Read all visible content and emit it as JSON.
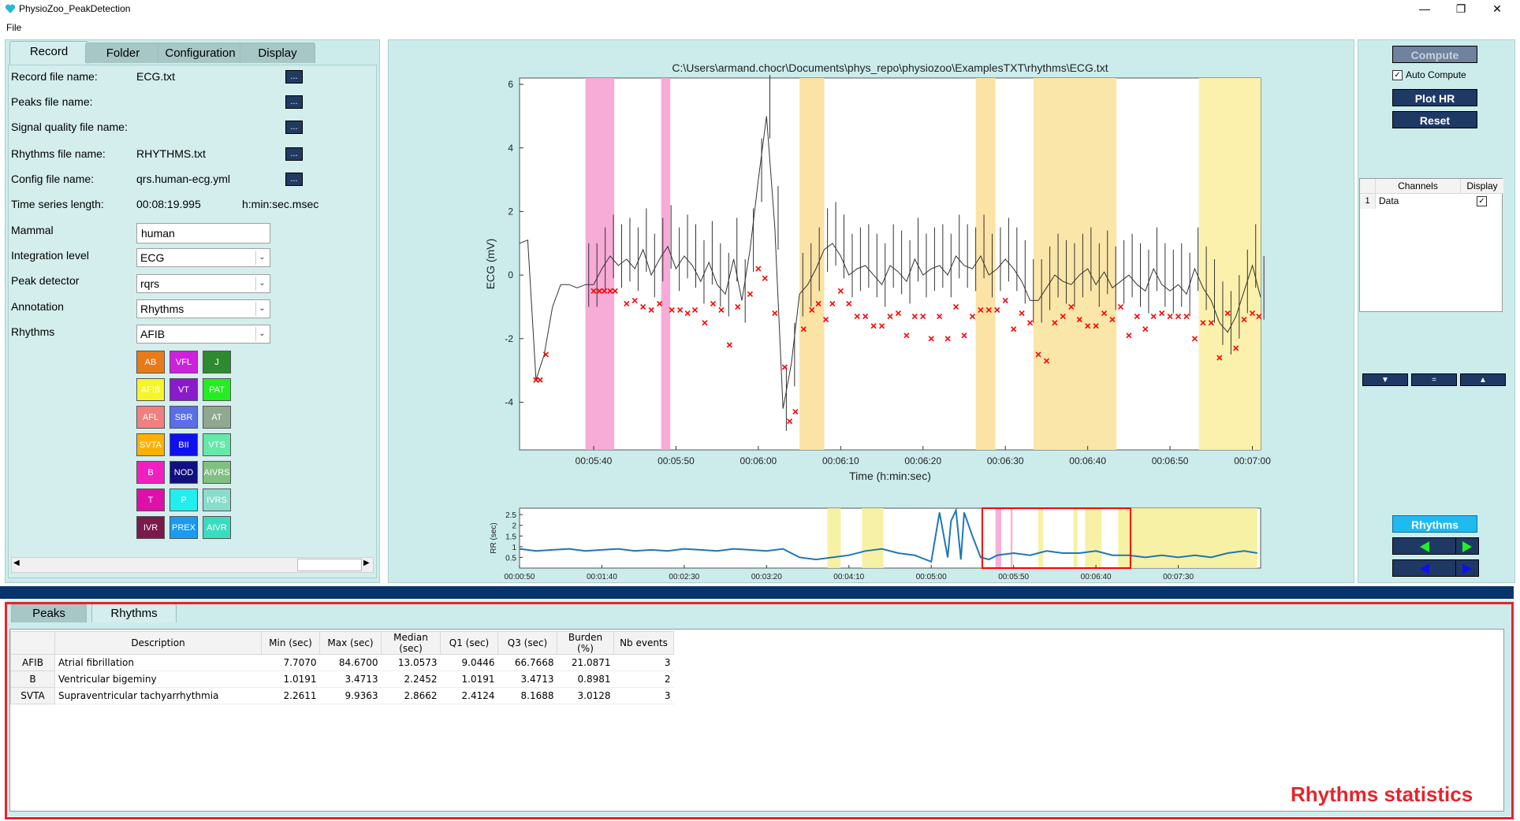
{
  "app": {
    "title": "PhysioZoo_PeakDetection",
    "menu": [
      "File"
    ]
  },
  "window_buttons": {
    "minimize": "—",
    "restore": "❐",
    "close": "✕"
  },
  "left_tabs": [
    "Record",
    "Folder",
    "Configuration",
    "Display"
  ],
  "record": {
    "fields": [
      {
        "label": "Record file name:",
        "value": "ECG.txt",
        "button": "..."
      },
      {
        "label": "Peaks file name:",
        "value": "",
        "button": "..."
      },
      {
        "label": "Signal quality file name:",
        "value": "",
        "button": "..."
      },
      {
        "label": "Rhythms file name:",
        "value": "RHYTHMS.txt",
        "button": "..."
      },
      {
        "label": "Config file name:",
        "value": "qrs.human-ecg.yml",
        "button": "..."
      }
    ],
    "ts_label": "Time series length:",
    "ts_value": "00:08:19.995",
    "ts_unit": "h:min:sec.msec",
    "mammal_label": "Mammal",
    "mammal_value": "human",
    "integration_label": "Integration level",
    "integration_value": "ECG",
    "peak_label": "Peak detector",
    "peak_value": "rqrs",
    "annotation_label": "Annotation",
    "annotation_value": "Rhythms",
    "rhythms_label": "Rhythms",
    "rhythms_value": "AFIB"
  },
  "rhythm_buttons": [
    {
      "label": "AB",
      "color": "#e87a1a",
      "text": "#ffffff"
    },
    {
      "label": "VFL",
      "color": "#cc22dd",
      "text": "#ffffff"
    },
    {
      "label": "J",
      "color": "#2e8a2e",
      "text": "#ffffff"
    },
    {
      "label": "AFIB",
      "color": "#f5f52a",
      "text": "#ffffff"
    },
    {
      "label": "VT",
      "color": "#8a1acc",
      "text": "#ffffff"
    },
    {
      "label": "PAT",
      "color": "#22ee22",
      "text": "#ffffff"
    },
    {
      "label": "AFL",
      "color": "#f08080",
      "text": "#ffffff"
    },
    {
      "label": "SBR",
      "color": "#5b6ee6",
      "text": "#ffffff"
    },
    {
      "label": "AT",
      "color": "#8fa88f",
      "text": "#ffffff"
    },
    {
      "label": "SVTA",
      "color": "#ffb000",
      "text": "#ffffff"
    },
    {
      "label": "BII",
      "color": "#1010ee",
      "text": "#ffffff"
    },
    {
      "label": "VTS",
      "color": "#66e8aa",
      "text": "#ffffff"
    },
    {
      "label": "B",
      "color": "#f020c0",
      "text": "#ffffff"
    },
    {
      "label": "NOD",
      "color": "#101080",
      "text": "#ffffff"
    },
    {
      "label": "AIVRS",
      "color": "#80c080",
      "text": "#ffffff"
    },
    {
      "label": "T",
      "color": "#dd10aa",
      "text": "#ffffff"
    },
    {
      "label": "P",
      "color": "#22eeee",
      "text": "#ffffff"
    },
    {
      "label": "IVRS",
      "color": "#88ddcc",
      "text": "#ffffff"
    },
    {
      "label": "IVR",
      "color": "#7a1a4a",
      "text": "#ffffff"
    },
    {
      "label": "PREX",
      "color": "#1a9af0",
      "text": "#ffffff"
    },
    {
      "label": "AIVR",
      "color": "#3adcc0",
      "text": "#ffffff"
    }
  ],
  "right": {
    "compute_label": "Compute",
    "auto_compute_label": "Auto Compute",
    "auto_compute_checked": true,
    "plot_hr_label": "Plot HR",
    "reset_label": "Reset",
    "channels_header": "Channels",
    "display_header": "Display",
    "channels": [
      {
        "index": "1",
        "name": "Data",
        "display": true
      }
    ],
    "zoom_buttons": [
      "▼",
      "=",
      "▲"
    ],
    "rhythms_button": "Rhythms"
  },
  "chart_data": [
    {
      "type": "line",
      "title": "C:\\Users\\armand.chocr\\Documents\\phys_repo\\physiozoo\\ExamplesTXT\\rhythms\\ECG.txt",
      "xlabel": "Time (h:min:sec)",
      "ylabel": "ECG (mV)",
      "x_unit": "seconds",
      "xlim": [
        331,
        421
      ],
      "ylim": [
        -5.5,
        6.2
      ],
      "xticks": [
        340,
        350,
        360,
        370,
        380,
        390,
        400,
        410,
        420
      ],
      "xtick_labels": [
        "00:05:40",
        "00:05:50",
        "00:06:00",
        "00:06:10",
        "00:06:20",
        "00:06:30",
        "00:06:40",
        "00:06:50",
        "00:07:00"
      ],
      "yticks": [
        -4,
        -2,
        0,
        2,
        4,
        6
      ],
      "rhythm_regions": [
        {
          "start": 339,
          "end": 342.5,
          "color": "#f7a7d5"
        },
        {
          "start": 348.2,
          "end": 349.3,
          "color": "#f7a7d5"
        },
        {
          "start": 365,
          "end": 368,
          "color": "#fbe2a0"
        },
        {
          "start": 386.4,
          "end": 388.8,
          "color": "#fbe2a0"
        },
        {
          "start": 393.4,
          "end": 403.5,
          "color": "#fbe5a4"
        },
        {
          "start": 413.5,
          "end": 421,
          "color": "#fcf0a8"
        }
      ],
      "series": [
        {
          "name": "ECG",
          "color": "#333333",
          "x": [
            331,
            332,
            333,
            334,
            335,
            336,
            337,
            338,
            339,
            340,
            341,
            342,
            343,
            344,
            345,
            346,
            347,
            348,
            349,
            350,
            351,
            352,
            353,
            354,
            355,
            356,
            357,
            358,
            359,
            360,
            361,
            362,
            363,
            364,
            365,
            366,
            367,
            368,
            369,
            370,
            371,
            372,
            373,
            374,
            375,
            376,
            377,
            378,
            379,
            380,
            381,
            382,
            383,
            384,
            385,
            386,
            387,
            388,
            389,
            390,
            391,
            392,
            393,
            394,
            395,
            396,
            397,
            398,
            399,
            400,
            401,
            402,
            403,
            404,
            405,
            406,
            407,
            408,
            409,
            410,
            411,
            412,
            413,
            414,
            415,
            416,
            417,
            418,
            419,
            420,
            421
          ],
          "y": [
            1.0,
            1.1,
            -3.3,
            -2.5,
            -1.0,
            -0.3,
            -0.3,
            -0.4,
            -0.3,
            -0.3,
            0.2,
            0.6,
            0.3,
            0.5,
            0.2,
            0.8,
            0.0,
            0.5,
            0.9,
            0.2,
            0.6,
            0.3,
            -0.2,
            0.4,
            -0.3,
            -0.6,
            0.5,
            -0.8,
            0.8,
            3.0,
            5.0,
            1.5,
            -4.2,
            -2.8,
            -0.6,
            -0.3,
            0.2,
            0.8,
            1.0,
            0.6,
            0.0,
            0.2,
            0.3,
            0.0,
            -0.3,
            0.3,
            0.1,
            -0.2,
            0.5,
            0.0,
            0.2,
            0.3,
            0.0,
            0.6,
            0.3,
            0.2,
            0.6,
            0.0,
            0.2,
            0.5,
            0.2,
            -0.2,
            -0.8,
            -0.8,
            -0.4,
            0.0,
            -0.2,
            -0.3,
            0.0,
            0.2,
            -0.3,
            0.1,
            -0.4,
            -0.2,
            0.0,
            -0.3,
            -0.5,
            0.2,
            -0.3,
            -0.5,
            -0.3,
            -0.6,
            0.2,
            -0.4,
            -0.8,
            -1.5,
            -1.8,
            -1.3,
            -0.5,
            0.3,
            -0.7
          ]
        },
        {
          "name": "Peaks",
          "color": "#ff0000",
          "marker": "x",
          "x": [
            333,
            333.5,
            334.2,
            340,
            340.7,
            341.3,
            342,
            342.6,
            344,
            345,
            346,
            347,
            348,
            349.5,
            350.5,
            351.4,
            352.3,
            353.5,
            354.5,
            355.5,
            356.5,
            357.5,
            359,
            360,
            360.8,
            362,
            363.2,
            363.8,
            364.5,
            365.5,
            366.5,
            367.3,
            368.2,
            369,
            370,
            371,
            372,
            373,
            374,
            375,
            376,
            377,
            378,
            379,
            380,
            381,
            382,
            383,
            384,
            385,
            386,
            387,
            388,
            389,
            390,
            391,
            392,
            393,
            394,
            395,
            396,
            397,
            398,
            399,
            400,
            401,
            402,
            403,
            404,
            405,
            406,
            407,
            408,
            409,
            410,
            411,
            412,
            413,
            414,
            415,
            416,
            417,
            418,
            419,
            420,
            420.8
          ],
          "y": [
            -3.3,
            -3.3,
            -2.5,
            -0.5,
            -0.5,
            -0.5,
            -0.5,
            -0.5,
            -0.9,
            -0.8,
            -1.0,
            -1.1,
            -0.9,
            -1.1,
            -1.1,
            -1.2,
            -1.1,
            -1.5,
            -0.9,
            -1.1,
            -2.2,
            -1.0,
            -0.6,
            0.2,
            -0.1,
            -1.2,
            -2.9,
            -4.6,
            -4.3,
            -1.7,
            -1.1,
            -0.9,
            -1.4,
            -0.9,
            -0.5,
            -0.9,
            -1.3,
            -1.3,
            -1.6,
            -1.6,
            -1.3,
            -1.2,
            -1.9,
            -1.3,
            -1.3,
            -2.0,
            -1.3,
            -2.0,
            -1.0,
            -1.9,
            -1.3,
            -1.1,
            -1.1,
            -1.1,
            -0.8,
            -1.7,
            -1.2,
            -1.5,
            -2.5,
            -2.7,
            -1.5,
            -1.3,
            -1.0,
            -1.4,
            -1.6,
            -1.6,
            -1.2,
            -1.4,
            -1.0,
            -1.9,
            -1.3,
            -1.7,
            -1.3,
            -1.2,
            -1.3,
            -1.3,
            -1.3,
            -2.0,
            -1.5,
            -1.5,
            -2.6,
            -1.2,
            -2.3,
            -1.4,
            -1.2,
            -1.3
          ]
        }
      ]
    },
    {
      "type": "line",
      "title": "",
      "xlabel": "",
      "ylabel": "RR (sec)",
      "x_unit": "seconds",
      "xlim": [
        50,
        500
      ],
      "ylim": [
        0,
        2.8
      ],
      "xticks": [
        50,
        100,
        150,
        200,
        250,
        300,
        350,
        400,
        450
      ],
      "xtick_labels": [
        "00:00:50",
        "00:01:40",
        "00:02:30",
        "00:03:20",
        "00:04:10",
        "00:05:00",
        "00:05:50",
        "00:06:40",
        "00:07:30"
      ],
      "yticks": [
        0.5,
        1,
        1.5,
        2,
        2.5
      ],
      "ytick_labels": [
        "0.5",
        "1",
        "1.5",
        "2",
        "2.5"
      ],
      "rhythm_regions": [
        {
          "start": 237,
          "end": 245,
          "color": "#f5f09a"
        },
        {
          "start": 258,
          "end": 271,
          "color": "#f5f09a"
        },
        {
          "start": 339,
          "end": 342.5,
          "color": "#f7a7d5"
        },
        {
          "start": 348.2,
          "end": 349.3,
          "color": "#f7a7d5"
        },
        {
          "start": 365,
          "end": 368,
          "color": "#f5f09a"
        },
        {
          "start": 386.4,
          "end": 388.8,
          "color": "#f5f09a"
        },
        {
          "start": 393.4,
          "end": 403.5,
          "color": "#f5f09a"
        },
        {
          "start": 413.5,
          "end": 498,
          "color": "#f5f09a"
        }
      ],
      "zoom_window": [
        331,
        421
      ],
      "series": [
        {
          "name": "RR",
          "color": "#1f77b4",
          "x": [
            50,
            60,
            70,
            80,
            90,
            100,
            110,
            120,
            130,
            140,
            150,
            160,
            170,
            180,
            190,
            200,
            210,
            220,
            230,
            240,
            250,
            260,
            270,
            280,
            290,
            300,
            305,
            310,
            312,
            315,
            318,
            320,
            325,
            330,
            335,
            340,
            350,
            360,
            370,
            380,
            390,
            400,
            410,
            420,
            430,
            440,
            450,
            460,
            470,
            480,
            490,
            498
          ],
          "y": [
            0.9,
            0.8,
            0.85,
            0.9,
            0.8,
            0.85,
            0.9,
            0.8,
            0.85,
            0.8,
            0.9,
            0.85,
            0.8,
            0.9,
            0.85,
            0.8,
            0.9,
            0.5,
            0.4,
            0.5,
            0.6,
            0.8,
            0.9,
            0.7,
            0.6,
            0.3,
            2.6,
            0.5,
            2.2,
            2.7,
            0.4,
            2.6,
            1.5,
            0.5,
            0.4,
            0.6,
            0.7,
            0.6,
            0.8,
            0.7,
            0.7,
            0.8,
            0.6,
            0.6,
            0.5,
            0.6,
            0.5,
            0.6,
            0.5,
            0.7,
            0.8,
            0.7
          ]
        }
      ]
    }
  ],
  "bottom_tabs": [
    "Peaks",
    "Rhythms"
  ],
  "stats_table": {
    "headers": [
      "Description",
      "Min (sec)",
      "Max (sec)",
      "Median (sec)",
      "Q1 (sec)",
      "Q3 (sec)",
      "Burden (%)",
      "Nb events"
    ],
    "rows": [
      {
        "code": "AFIB",
        "cells": [
          "Atrial fibrillation",
          "7.7070",
          "84.6700",
          "13.0573",
          "9.0446",
          "66.7668",
          "21.0871",
          "3"
        ]
      },
      {
        "code": "B",
        "cells": [
          "Ventricular bigeminy",
          "1.0191",
          "3.4713",
          "2.2452",
          "1.0191",
          "3.4713",
          "0.8981",
          "2"
        ]
      },
      {
        "code": "SVTA",
        "cells": [
          "Supraventricular tachyarrhythmia",
          "2.2611",
          "9.9363",
          "2.8662",
          "2.4124",
          "8.1688",
          "3.0128",
          "3"
        ]
      }
    ]
  },
  "annotation_label": "Rhythms statistics"
}
